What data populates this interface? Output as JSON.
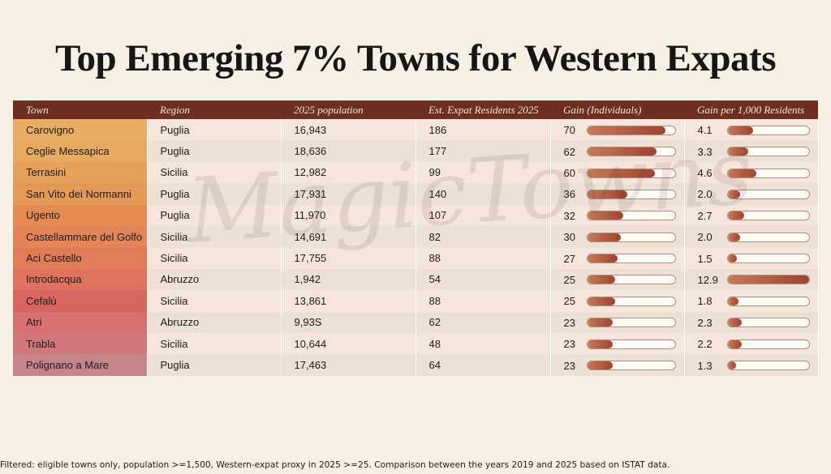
{
  "title": "Top Emerging 7% Towns for Western Expats",
  "watermark": "MagicTowns",
  "footnote": "Filtered: eligible towns only, population >=1,500, Western-expat proxy in 2025 >=25. Comparison between the years 2019 and 2025 based on ISTAT data.",
  "colors": {
    "header": "#6f2e22",
    "bar_fill_start": "#c87a55",
    "bar_fill_end": "#9e4330"
  },
  "chart_data": {
    "type": "table",
    "columns": [
      "Town",
      "Region",
      "2025 population",
      "Est. Expat Residents 2025",
      "Gain (Individuals)",
      "Gain per 1,000 Residents"
    ],
    "bar_max": {
      "gain": 78,
      "gain_per_1000": 12.9
    },
    "rows": [
      {
        "town": "Carovigno",
        "region": "Puglia",
        "population": "16,943",
        "expats": "186",
        "gain": 70,
        "gain_per_1000": 4.1,
        "town_color": "#e8ad62"
      },
      {
        "town": "Ceglie Messapica",
        "region": "Puglia",
        "population": "18,636",
        "expats": "177",
        "gain": 62,
        "gain_per_1000": 3.3,
        "town_color": "#e7a95f"
      },
      {
        "town": "Terrasini",
        "region": "Sicilia",
        "population": "12,982",
        "expats": "99",
        "gain": 60,
        "gain_per_1000": 4.6,
        "town_color": "#e6a25a"
      },
      {
        "town": "San Vito dei Normanni",
        "region": "Puglia",
        "population": "17,931",
        "expats": "140",
        "gain": 36,
        "gain_per_1000": 2.0,
        "town_color": "#e59957"
      },
      {
        "town": "Ugento",
        "region": "Puglia",
        "population": "11,970",
        "expats": "107",
        "gain": 32,
        "gain_per_1000": 2.7,
        "town_color": "#e48b51"
      },
      {
        "town": "Castellammare del Golfo",
        "region": "Sicilia",
        "population": "14,691",
        "expats": "82",
        "gain": 30,
        "gain_per_1000": 2.0,
        "town_color": "#e38557"
      },
      {
        "town": "Aci Castello",
        "region": "Sicilia",
        "population": "17,755",
        "expats": "88",
        "gain": 27,
        "gain_per_1000": 1.5,
        "town_color": "#e17c58"
      },
      {
        "town": "Introdacqua",
        "region": "Abruzzo",
        "population": "1,942",
        "expats": "54",
        "gain": 25,
        "gain_per_1000": 12.9,
        "town_color": "#df735f"
      },
      {
        "town": "Cefalù",
        "region": "Sicilia",
        "population": "13,861",
        "expats": "88",
        "gain": 25,
        "gain_per_1000": 1.8,
        "town_color": "#d9655f"
      },
      {
        "town": "Atri",
        "region": "Abruzzo",
        "population": "9,93S",
        "expats": "62",
        "gain": 23,
        "gain_per_1000": 2.3,
        "town_color": "#d77070"
      },
      {
        "town": "Trabla",
        "region": "Sicilia",
        "population": "10,644",
        "expats": "48",
        "gain": 23,
        "gain_per_1000": 2.2,
        "town_color": "#d0777c"
      },
      {
        "town": "Polignano a Mare",
        "region": "Puglia",
        "population": "17,463",
        "expats": "64",
        "gain": 23,
        "gain_per_1000": 1.3,
        "town_color": "#c48488"
      }
    ]
  }
}
